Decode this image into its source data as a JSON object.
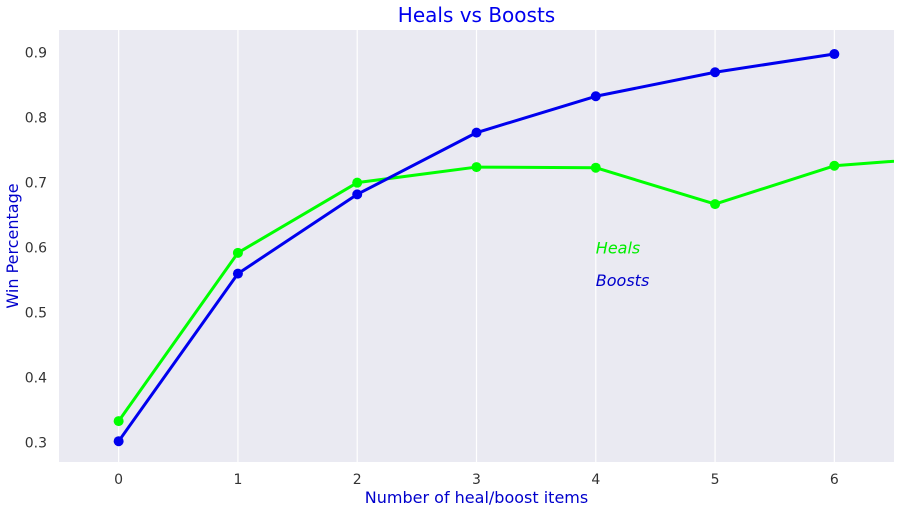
{
  "chart_data": {
    "type": "line",
    "title": "Heals vs Boosts",
    "xlabel": "Number of heal/boost items",
    "ylabel": "Win Percentage",
    "xlim": [
      -0.5,
      6.5
    ],
    "ylim": [
      0.27,
      0.935
    ],
    "xticks": [
      0,
      1,
      2,
      3,
      4,
      5,
      6
    ],
    "yticks": [
      0.3,
      0.4,
      0.5,
      0.6,
      0.7,
      0.8,
      0.9
    ],
    "grid": "vertical",
    "title_color": "#0000ee",
    "label_color": "#0000cc",
    "background_color": "#eaeaf2",
    "series": [
      {
        "key": "heals",
        "color": "#00ff00",
        "x": [
          0,
          1,
          2,
          3,
          4,
          5,
          6,
          7
        ],
        "y": [
          0.333,
          0.592,
          0.7,
          0.724,
          0.723,
          0.667,
          0.726,
          0.74
        ]
      },
      {
        "key": "boosts",
        "color": "#0000ee",
        "x": [
          0,
          1,
          2,
          3,
          4,
          5,
          6
        ],
        "y": [
          0.302,
          0.56,
          0.682,
          0.777,
          0.833,
          0.87,
          0.898
        ]
      }
    ],
    "annotations": [
      {
        "text": "Heals",
        "x": 4,
        "y": 0.6,
        "color": "#00ee00"
      },
      {
        "text": "Boosts",
        "x": 4,
        "y": 0.55,
        "color": "#0000cc"
      }
    ]
  }
}
